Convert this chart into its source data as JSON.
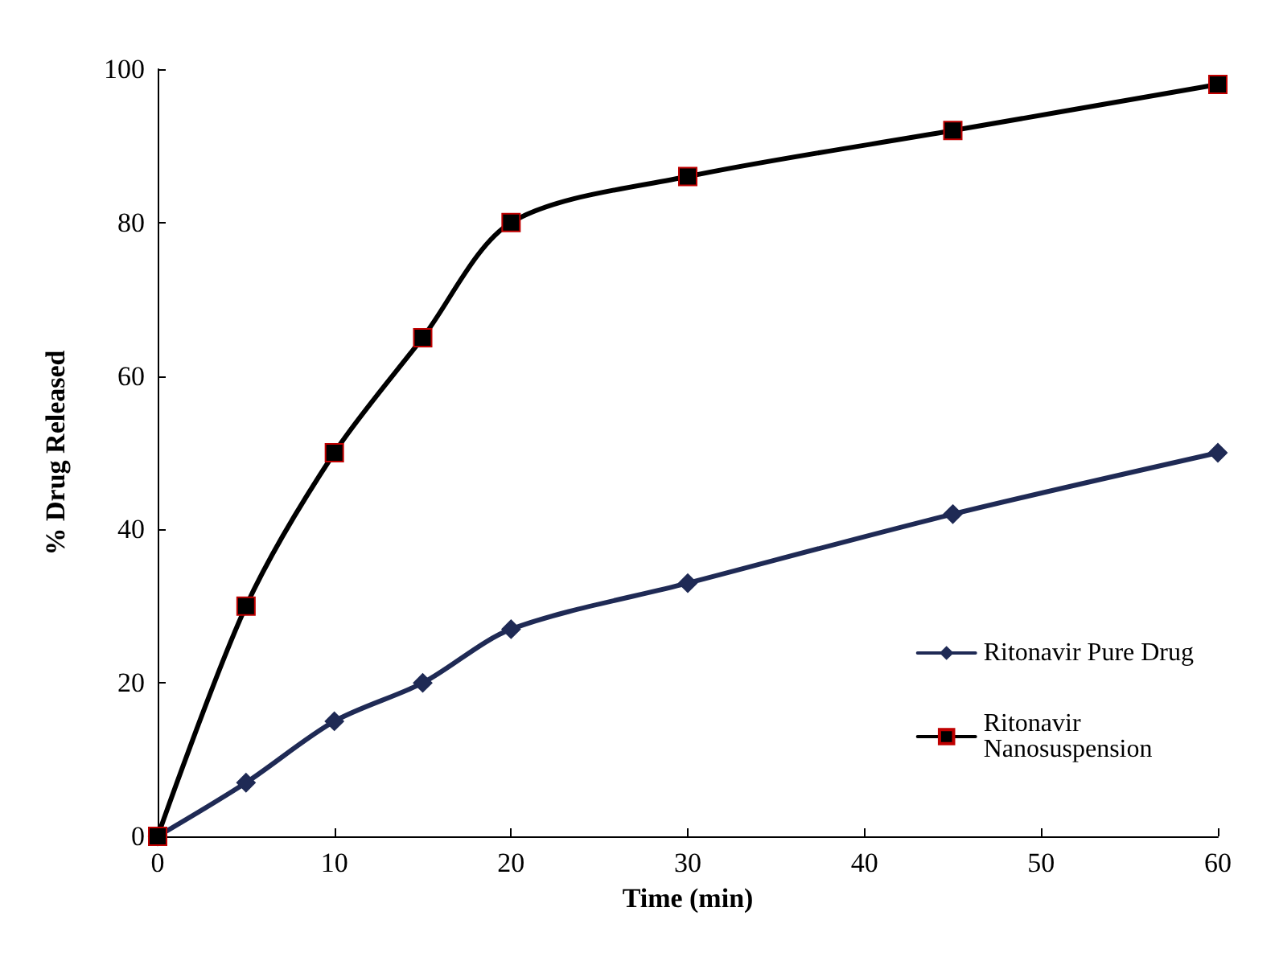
{
  "chart_data": {
    "type": "line",
    "xlabel": "Time (min)",
    "ylabel": "% Drug Released",
    "x": [
      0,
      5,
      10,
      15,
      20,
      30,
      45,
      60
    ],
    "series": [
      {
        "name": "Ritonavir Pure Drug",
        "color": "#1f2a55",
        "marker": "diamond",
        "values": [
          0,
          7,
          15,
          20,
          27,
          33,
          42,
          50
        ]
      },
      {
        "name": "Ritonavir Nanosuspension",
        "color": "#000000",
        "marker": "square",
        "values": [
          0,
          30,
          50,
          65,
          80,
          86,
          92,
          98
        ]
      }
    ],
    "xlim": [
      0,
      60
    ],
    "xticks": [
      0,
      10,
      20,
      30,
      40,
      50,
      60
    ],
    "ylim": [
      0,
      100
    ],
    "yticks": [
      0,
      20,
      40,
      60,
      80,
      100
    ],
    "grid": false,
    "legend": "right",
    "line_style": "solid"
  }
}
